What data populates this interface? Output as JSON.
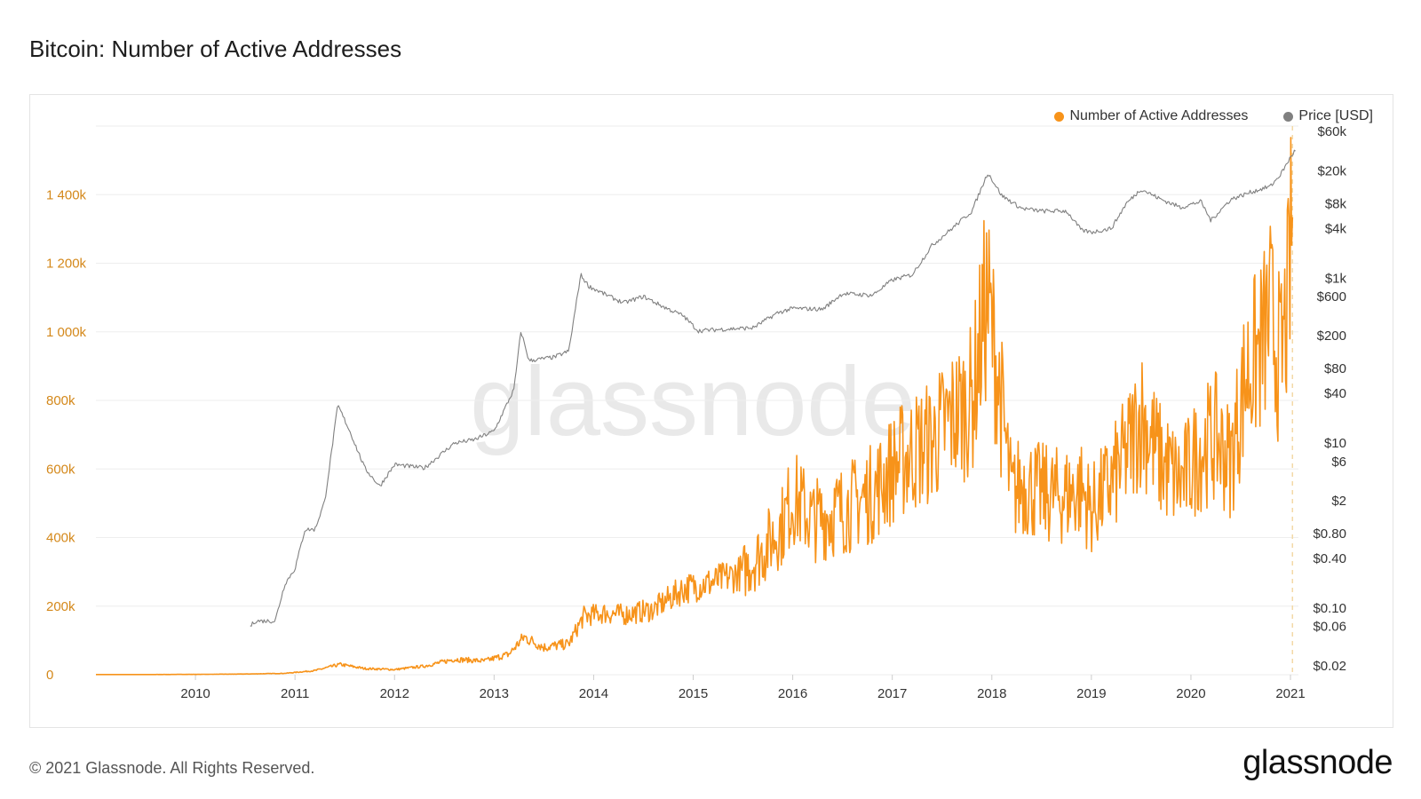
{
  "page": {
    "title": "Bitcoin: Number of Active Addresses",
    "footer": "© 2021 Glassnode. All Rights Reserved.",
    "brand": "glassnode",
    "watermark": "glassnode"
  },
  "colors": {
    "addresses": "#f7931a",
    "price": "#808080",
    "grid": "#eeeeee",
    "left_axis_text": "#d4881a",
    "right_axis_text": "#333333"
  },
  "chart_data": {
    "type": "line",
    "title": "Bitcoin: Number of Active Addresses",
    "grid": true,
    "legend_position": "top-right",
    "x_ticks": [
      "2010",
      "2011",
      "2012",
      "2013",
      "2014",
      "2015",
      "2016",
      "2017",
      "2018",
      "2019",
      "2020",
      "2021"
    ],
    "x_range": [
      2009.0,
      2021.08
    ],
    "y_left": {
      "ticks": [
        "0",
        "200k",
        "400k",
        "600k",
        "800k",
        "1 000k",
        "1 200k",
        "1 400k"
      ],
      "tick_values": [
        0,
        200000,
        400000,
        600000,
        800000,
        1000000,
        1200000,
        1400000
      ],
      "range": [
        0,
        1600000
      ]
    },
    "y_right": {
      "scale": "log",
      "ticks": [
        "$60k",
        "$20k",
        "$8k",
        "$4k",
        "$1k",
        "$600",
        "$200",
        "$80",
        "$40",
        "$10",
        "$6",
        "$2",
        "$0.80",
        "$0.40",
        "$0.10",
        "$0.06",
        "$0.02"
      ],
      "tick_values": [
        60000,
        20000,
        8000,
        4000,
        1000,
        600,
        200,
        80,
        40,
        10,
        6,
        2,
        0.8,
        0.4,
        0.1,
        0.06,
        0.02
      ],
      "range": [
        0.02,
        60000
      ]
    },
    "series": [
      {
        "name": "Number of Active Addresses",
        "axis": "left",
        "x": [
          2009.0,
          2009.5,
          2010.0,
          2010.5,
          2010.9,
          2011.2,
          2011.45,
          2011.7,
          2012.0,
          2012.3,
          2012.6,
          2012.9,
          2013.15,
          2013.3,
          2013.5,
          2013.75,
          2013.9,
          2014.1,
          2014.3,
          2014.6,
          2014.9,
          2015.2,
          2015.5,
          2015.7,
          2015.9,
          2016.0,
          2016.2,
          2016.5,
          2016.8,
          2017.0,
          2017.2,
          2017.4,
          2017.6,
          2017.8,
          2017.95,
          2018.05,
          2018.2,
          2018.3,
          2018.5,
          2018.7,
          2018.9,
          2019.0,
          2019.2,
          2019.35,
          2019.5,
          2019.7,
          2019.9,
          2020.1,
          2020.25,
          2020.4,
          2020.55,
          2020.7,
          2020.8,
          2020.9,
          2020.98,
          2021.02
        ],
        "values": [
          500,
          500,
          1000,
          2000,
          4000,
          12000,
          30000,
          18000,
          15000,
          25000,
          45000,
          40000,
          60000,
          110000,
          80000,
          90000,
          170000,
          180000,
          175000,
          190000,
          250000,
          270000,
          300000,
          360000,
          440000,
          520000,
          450000,
          480000,
          530000,
          600000,
          650000,
          680000,
          750000,
          800000,
          1100000,
          900000,
          520000,
          560000,
          530000,
          520000,
          540000,
          480000,
          560000,
          640000,
          760000,
          620000,
          560000,
          660000,
          690000,
          620000,
          870000,
          950000,
          1050000,
          900000,
          1100000,
          1350000
        ]
      },
      {
        "name": "Price [USD]",
        "axis": "right",
        "x": [
          2010.55,
          2010.6,
          2010.8,
          2010.9,
          2011.0,
          2011.1,
          2011.2,
          2011.3,
          2011.43,
          2011.55,
          2011.7,
          2011.85,
          2012.0,
          2012.3,
          2012.6,
          2012.8,
          2013.0,
          2013.2,
          2013.27,
          2013.35,
          2013.6,
          2013.75,
          2013.87,
          2013.95,
          2014.1,
          2014.3,
          2014.5,
          2014.7,
          2014.9,
          2015.05,
          2015.3,
          2015.6,
          2015.85,
          2016.0,
          2016.3,
          2016.5,
          2016.8,
          2017.0,
          2017.2,
          2017.4,
          2017.6,
          2017.8,
          2017.96,
          2018.1,
          2018.3,
          2018.5,
          2018.75,
          2018.9,
          2019.0,
          2019.2,
          2019.35,
          2019.5,
          2019.7,
          2019.9,
          2020.1,
          2020.2,
          2020.4,
          2020.6,
          2020.8,
          2020.9,
          2021.0,
          2021.05
        ],
        "values": [
          0.06,
          0.07,
          0.07,
          0.2,
          0.3,
          0.9,
          0.9,
          2.0,
          29.0,
          14.0,
          5.0,
          3.0,
          5.5,
          5.0,
          10.0,
          11.0,
          14.0,
          45.0,
          230.0,
          100.0,
          110.0,
          130.0,
          1100.0,
          800.0,
          650.0,
          500.0,
          600.0,
          450.0,
          350.0,
          230.0,
          240.0,
          250.0,
          380.0,
          430.0,
          420.0,
          650.0,
          620.0,
          950.0,
          1100.0,
          2500.0,
          4000.0,
          6500.0,
          19000.0,
          10000.0,
          7000.0,
          6500.0,
          6500.0,
          3800.0,
          3600.0,
          4000.0,
          8000.0,
          12000.0,
          9000.0,
          7200.0,
          8500.0,
          5000.0,
          9000.0,
          11000.0,
          13000.0,
          18000.0,
          29000.0,
          36000.0
        ]
      }
    ]
  }
}
